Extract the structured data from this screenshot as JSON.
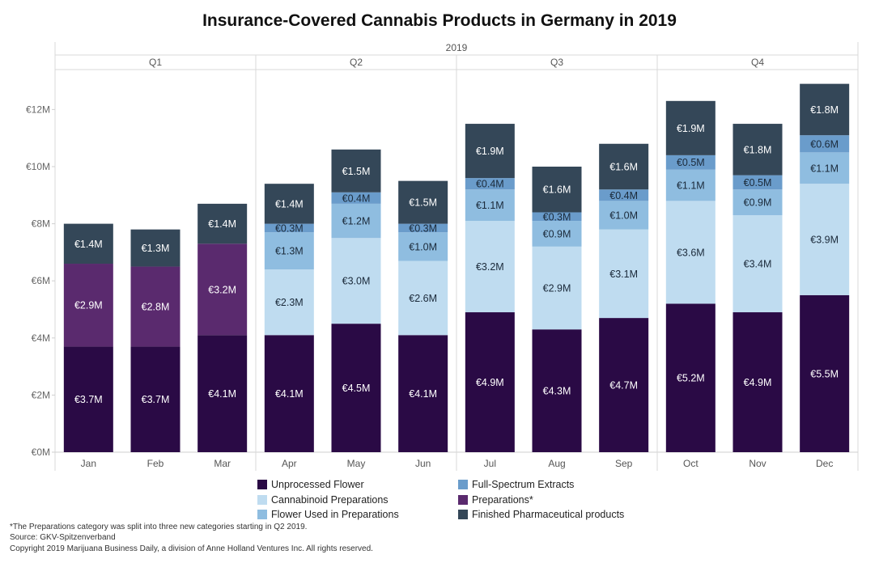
{
  "chart_data": {
    "type": "bar",
    "stacked": true,
    "title": "Insurance-Covered Cannabis Products in Germany in 2019",
    "year_label": "2019",
    "quarters": [
      {
        "label": "Q1",
        "months": [
          "Jan",
          "Feb",
          "Mar"
        ]
      },
      {
        "label": "Q2",
        "months": [
          "Apr",
          "May",
          "Jun"
        ]
      },
      {
        "label": "Q3",
        "months": [
          "Jul",
          "Aug",
          "Sep"
        ]
      },
      {
        "label": "Q4",
        "months": [
          "Oct",
          "Nov",
          "Dec"
        ]
      }
    ],
    "categories": [
      "Jan",
      "Feb",
      "Mar",
      "Apr",
      "May",
      "Jun",
      "Jul",
      "Aug",
      "Sep",
      "Oct",
      "Nov",
      "Dec"
    ],
    "y_ticks": [
      {
        "value": 0,
        "label": "€0M"
      },
      {
        "value": 2,
        "label": "€2M"
      },
      {
        "value": 4,
        "label": "€4M"
      },
      {
        "value": 6,
        "label": "€6M"
      },
      {
        "value": 8,
        "label": "€8M"
      },
      {
        "value": 10,
        "label": "€10M"
      },
      {
        "value": 12,
        "label": "€12M"
      }
    ],
    "ylim": [
      0,
      13.4
    ],
    "series": [
      {
        "name": "Unprocessed Flower",
        "color": "#2a0a45",
        "values": [
          3.7,
          3.7,
          4.1,
          4.1,
          4.5,
          4.1,
          4.9,
          4.3,
          4.7,
          5.2,
          4.9,
          5.5
        ],
        "labels": [
          "€3.7M",
          "€3.7M",
          "€4.1M",
          "€4.1M",
          "€4.5M",
          "€4.1M",
          "€4.9M",
          "€4.3M",
          "€4.7M",
          "€5.2M",
          "€4.9M",
          "€5.5M"
        ]
      },
      {
        "name": "Preparations*",
        "color": "#5a2a6e",
        "values": [
          2.9,
          2.8,
          3.2,
          null,
          null,
          null,
          null,
          null,
          null,
          null,
          null,
          null
        ],
        "labels": [
          "€2.9M",
          "€2.8M",
          "€3.2M",
          null,
          null,
          null,
          null,
          null,
          null,
          null,
          null,
          null
        ]
      },
      {
        "name": "Cannabinoid Preparations",
        "color": "#bfdcf0",
        "values": [
          null,
          null,
          null,
          2.3,
          3.0,
          2.6,
          3.2,
          2.9,
          3.1,
          3.6,
          3.4,
          3.9
        ],
        "labels": [
          null,
          null,
          null,
          "€2.3M",
          "€3.0M",
          "€2.6M",
          "€3.2M",
          "€2.9M",
          "€3.1M",
          "€3.6M",
          "€3.4M",
          "€3.9M"
        ]
      },
      {
        "name": "Flower Used in Preparations",
        "color": "#8fbde0",
        "values": [
          null,
          null,
          null,
          1.3,
          1.2,
          1.0,
          1.1,
          0.9,
          1.0,
          1.1,
          0.9,
          1.1
        ],
        "labels": [
          null,
          null,
          null,
          "€1.3M",
          "€1.2M",
          "€1.0M",
          "€1.1M",
          "€0.9M",
          "€1.0M",
          "€1.1M",
          "€0.9M",
          "€1.1M"
        ]
      },
      {
        "name": "Full-Spectrum Extracts",
        "color": "#6a9ccb",
        "values": [
          null,
          null,
          null,
          0.3,
          0.4,
          0.3,
          0.4,
          0.3,
          0.4,
          0.5,
          0.5,
          0.6
        ],
        "labels": [
          null,
          null,
          null,
          "€0.3M",
          "€0.4M",
          "€0.3M",
          "€0.4M",
          "€0.3M",
          "€0.4M",
          "€0.5M",
          "€0.5M",
          "€0.6M"
        ]
      },
      {
        "name": "Finished Pharmaceutical products",
        "color": "#344758",
        "values": [
          1.4,
          1.3,
          1.4,
          1.4,
          1.5,
          1.5,
          1.9,
          1.6,
          1.6,
          1.9,
          1.8,
          1.8
        ],
        "labels": [
          "€1.4M",
          "€1.3M",
          "€1.4M",
          "€1.4M",
          "€1.5M",
          "€1.5M",
          "€1.9M",
          "€1.6M",
          "€1.6M",
          "€1.9M",
          "€1.8M",
          "€1.8M"
        ]
      }
    ],
    "legend_order": [
      "Unprocessed Flower",
      "Full-Spectrum Extracts",
      "Cannabinoid Preparations",
      "Preparations*",
      "Flower Used in Preparations",
      "Finished Pharmaceutical products"
    ],
    "legend_position": "bottom"
  },
  "footnotes": [
    "*The Preparations category was split into three new categories starting in Q2 2019.",
    "Source: GKV-Spitzenverband",
    "Copyright 2019 Marijuana Business Daily, a division of Anne Holland Ventures Inc. All rights reserved."
  ]
}
